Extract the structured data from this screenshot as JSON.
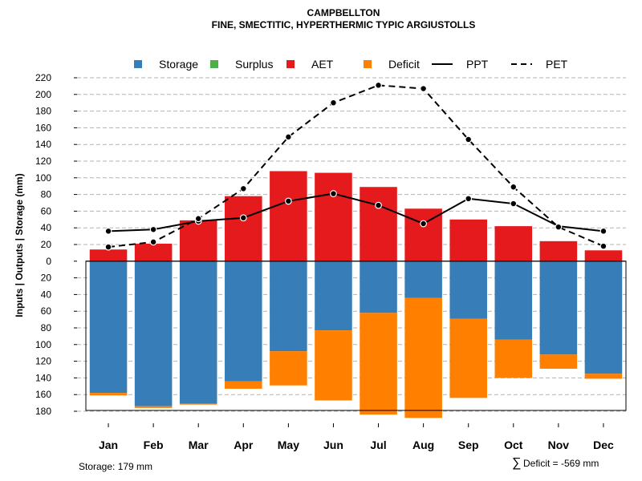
{
  "chart_data": {
    "type": "bar",
    "title": "CAMPBELLTON",
    "subtitle": "FINE, SMECTITIC, HYPERTHERMIC TYPIC ARGIUSTOLLS",
    "ylabel": "Inputs | Outputs | Storage     (mm)",
    "xlabel": "",
    "categories": [
      "Jan",
      "Feb",
      "Mar",
      "Apr",
      "May",
      "Jun",
      "Jul",
      "Aug",
      "Sep",
      "Oct",
      "Nov",
      "Dec"
    ],
    "ylim": [
      -180,
      220
    ],
    "yticks": [
      220,
      200,
      180,
      160,
      140,
      120,
      100,
      80,
      60,
      40,
      20,
      0,
      -20,
      -40,
      -60,
      -80,
      -100,
      -120,
      -140,
      -160,
      -180
    ],
    "ytick_labels": [
      "220",
      "200",
      "180",
      "160",
      "140",
      "120",
      "100",
      "80",
      "60",
      "40",
      "20",
      "0",
      "20",
      "40",
      "60",
      "80",
      "100",
      "120",
      "140",
      "160",
      "180"
    ],
    "grid": true,
    "legend_position": "top",
    "legend": [
      {
        "label": "Storage",
        "kind": "box",
        "color": "#377EB8"
      },
      {
        "label": "Surplus",
        "kind": "box",
        "color": "#4DAF4A"
      },
      {
        "label": "AET",
        "kind": "box",
        "color": "#E41A1C"
      },
      {
        "label": "Deficit",
        "kind": "box",
        "color": "#FF7F00"
      },
      {
        "label": "PPT",
        "kind": "solid",
        "color": "#000000"
      },
      {
        "label": "PET",
        "kind": "dashed",
        "color": "#000000"
      }
    ],
    "series": [
      {
        "name": "AET",
        "color": "#E41A1C",
        "values": [
          14,
          21,
          49,
          78,
          108,
          106,
          89,
          63,
          50,
          42,
          24,
          13
        ]
      },
      {
        "name": "Storage",
        "color": "#377EB8",
        "values": [
          158,
          174,
          171,
          144,
          108,
          83,
          62,
          44,
          69,
          94,
          112,
          135
        ]
      },
      {
        "name": "Deficit",
        "color": "#FF7F00",
        "values": [
          3,
          2,
          1,
          9,
          41,
          84,
          122,
          144,
          95,
          46,
          17,
          6
        ]
      },
      {
        "name": "Surplus",
        "color": "#4DAF4A",
        "values": [
          0,
          0,
          0,
          0,
          0,
          0,
          0,
          0,
          0,
          0,
          0,
          0
        ]
      },
      {
        "name": "PPT",
        "color": "#000000",
        "style": "solid",
        "values": [
          36,
          38,
          48,
          52,
          72,
          81,
          67,
          45,
          75,
          69,
          42,
          36
        ]
      },
      {
        "name": "PET",
        "color": "#000000",
        "style": "dashed",
        "values": [
          17,
          23,
          51,
          87,
          149,
          190,
          211,
          207,
          146,
          89,
          41,
          18
        ]
      }
    ],
    "storage_capacity": 179
  },
  "footer": {
    "storage_note": "Storage: 179 mm",
    "deficit_symbol": "∑",
    "deficit_note": "Deficit = -569 mm"
  }
}
